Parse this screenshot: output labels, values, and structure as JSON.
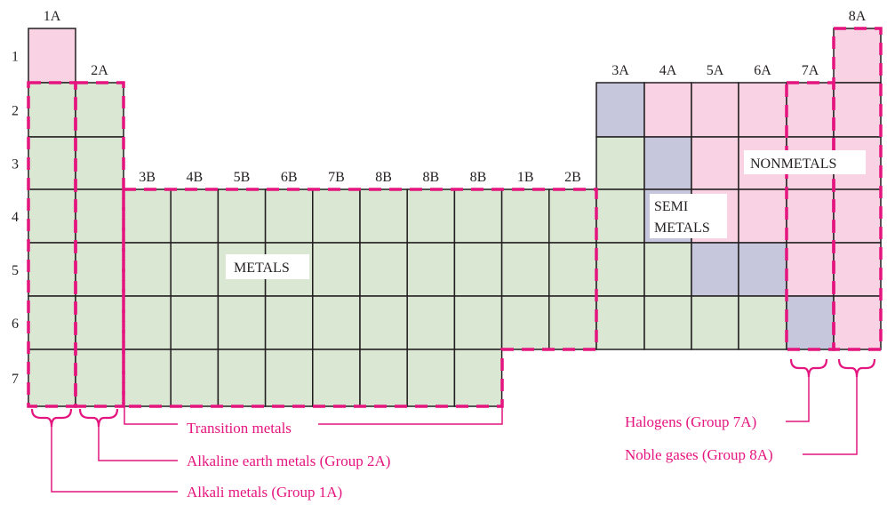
{
  "colors": {
    "metal": "#d9e7d3",
    "nonmetal": "#f9d3e4",
    "semimetal": "#c6c7dc",
    "accent": "#e4157e",
    "grid": "#231f20"
  },
  "group_labels": [
    "1A",
    "2A",
    "3B",
    "4B",
    "5B",
    "6B",
    "7B",
    "8B",
    "8B",
    "8B",
    "1B",
    "2B",
    "3A",
    "4A",
    "5A",
    "6A",
    "7A",
    "8A"
  ],
  "period_labels": [
    "1",
    "2",
    "3",
    "4",
    "5",
    "6",
    "7"
  ],
  "cells": [
    "N________________N",
    "MM__________SNNNNN",
    "MM__________MSNNNN",
    "MMMMMMMMMMMMMSNNNN",
    "MMMMMMMMMMMMMMSSNN",
    "MMMMMMMMMMMMMMMMSN",
    "MMMMMMMMMM________"
  ],
  "region_labels": {
    "metals": "METALS",
    "semimetals_1": "SEMI",
    "semimetals_2": "METALS",
    "nonmetals": "NONMETALS"
  },
  "callouts": {
    "transition": "Transition metals",
    "alkaline_earth": "Alkaline earth metals (Group 2A)",
    "alkali": "Alkali metals (Group 1A)",
    "halogens": "Halogens (Group 7A)",
    "noble": "Noble gases (Group 8A)"
  }
}
